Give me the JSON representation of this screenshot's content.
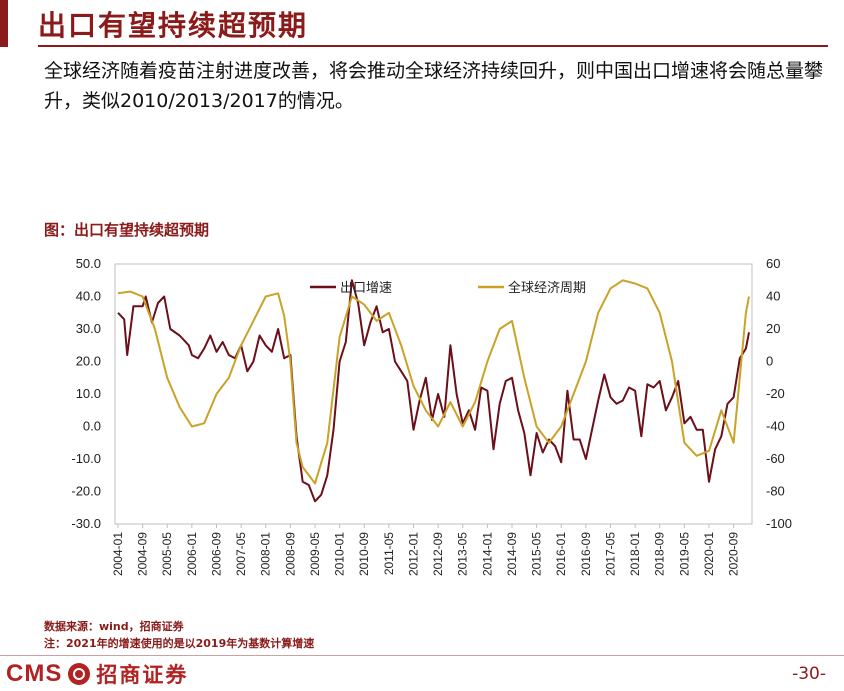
{
  "page": {
    "title": "出口有望持续超预期",
    "summary": "全球经济随着疫苗注射进度改善，将会推动全球经济持续回升，则中国出口增速将会随总量攀升，类似2010/2013/2017的情况。",
    "figure_caption": "图：出口有望持续超预期",
    "source": "数据来源：wind，招商证券",
    "note": "注：2021年的增速使用的是以2019年为基数计算增速",
    "logo_cms": "CMS",
    "logo_cn": "招商证券",
    "page_number": "-30-"
  },
  "colors": {
    "accent": "#8b1a1a",
    "export_series": "#6b0f1a",
    "global_cycle_series": "#c9a227"
  },
  "chart_data": {
    "type": "line",
    "title": "",
    "xlabel": "",
    "ylabel": "",
    "legend_position": "top-center",
    "grid": false,
    "x_ticks": [
      "2004-01",
      "2004-09",
      "2005-05",
      "2006-01",
      "2006-09",
      "2007-05",
      "2008-01",
      "2008-09",
      "2009-05",
      "2010-01",
      "2010-09",
      "2011-05",
      "2012-01",
      "2012-09",
      "2013-05",
      "2014-01",
      "2014-09",
      "2015-05",
      "2016-01",
      "2016-09",
      "2017-05",
      "2018-01",
      "2018-09",
      "2019-05",
      "2020-01",
      "2020-09"
    ],
    "y_left": {
      "ylim": [
        -30,
        50
      ],
      "ticks": [
        "50.0",
        "40.0",
        "30.0",
        "20.0",
        "10.0",
        "0.0",
        "-10.0",
        "-20.0",
        "-30.0"
      ]
    },
    "y_right": {
      "ylim": [
        -100,
        60
      ],
      "ticks": [
        "60",
        "40",
        "20",
        "0",
        "-20",
        "-40",
        "-60",
        "-80",
        "-100"
      ]
    },
    "series": [
      {
        "name": "出口增速",
        "axis": "left",
        "color": "#6b0f1a",
        "points": [
          [
            "2004-01",
            35
          ],
          [
            "2004-03",
            33
          ],
          [
            "2004-04",
            22
          ],
          [
            "2004-06",
            37
          ],
          [
            "2004-09",
            37
          ],
          [
            "2004-10",
            40
          ],
          [
            "2004-12",
            32
          ],
          [
            "2005-02",
            38
          ],
          [
            "2005-04",
            40
          ],
          [
            "2005-06",
            30
          ],
          [
            "2005-09",
            28
          ],
          [
            "2005-12",
            25
          ],
          [
            "2006-01",
            22
          ],
          [
            "2006-03",
            21
          ],
          [
            "2006-05",
            24
          ],
          [
            "2006-07",
            28
          ],
          [
            "2006-09",
            23
          ],
          [
            "2006-11",
            26
          ],
          [
            "2007-01",
            22
          ],
          [
            "2007-03",
            21
          ],
          [
            "2007-05",
            25
          ],
          [
            "2007-07",
            17
          ],
          [
            "2007-09",
            20
          ],
          [
            "2007-11",
            28
          ],
          [
            "2008-01",
            25
          ],
          [
            "2008-03",
            23
          ],
          [
            "2008-05",
            30
          ],
          [
            "2008-07",
            21
          ],
          [
            "2008-09",
            22
          ],
          [
            "2008-11",
            -3
          ],
          [
            "2009-01",
            -17
          ],
          [
            "2009-03",
            -18
          ],
          [
            "2009-05",
            -23
          ],
          [
            "2009-07",
            -21
          ],
          [
            "2009-09",
            -15
          ],
          [
            "2009-11",
            -1
          ],
          [
            "2010-01",
            20
          ],
          [
            "2010-03",
            26
          ],
          [
            "2010-05",
            45
          ],
          [
            "2010-07",
            38
          ],
          [
            "2010-09",
            25
          ],
          [
            "2010-11",
            32
          ],
          [
            "2011-01",
            37
          ],
          [
            "2011-03",
            29
          ],
          [
            "2011-05",
            30
          ],
          [
            "2011-07",
            20
          ],
          [
            "2011-09",
            17
          ],
          [
            "2011-11",
            14
          ],
          [
            "2012-01",
            -1
          ],
          [
            "2012-03",
            8
          ],
          [
            "2012-05",
            15
          ],
          [
            "2012-07",
            2
          ],
          [
            "2012-09",
            10
          ],
          [
            "2012-11",
            3
          ],
          [
            "2013-01",
            25
          ],
          [
            "2013-03",
            10
          ],
          [
            "2013-05",
            1
          ],
          [
            "2013-07",
            5
          ],
          [
            "2013-09",
            -1
          ],
          [
            "2013-11",
            12
          ],
          [
            "2014-01",
            11
          ],
          [
            "2014-03",
            -7
          ],
          [
            "2014-05",
            7
          ],
          [
            "2014-07",
            14
          ],
          [
            "2014-09",
            15
          ],
          [
            "2014-11",
            5
          ],
          [
            "2015-01",
            -2
          ],
          [
            "2015-03",
            -15
          ],
          [
            "2015-05",
            -2
          ],
          [
            "2015-07",
            -8
          ],
          [
            "2015-09",
            -4
          ],
          [
            "2015-11",
            -6
          ],
          [
            "2016-01",
            -11
          ],
          [
            "2016-03",
            11
          ],
          [
            "2016-05",
            -4
          ],
          [
            "2016-07",
            -4
          ],
          [
            "2016-09",
            -10
          ],
          [
            "2016-11",
            -1
          ],
          [
            "2017-01",
            8
          ],
          [
            "2017-03",
            16
          ],
          [
            "2017-05",
            9
          ],
          [
            "2017-07",
            7
          ],
          [
            "2017-09",
            8
          ],
          [
            "2017-11",
            12
          ],
          [
            "2018-01",
            11
          ],
          [
            "2018-03",
            -3
          ],
          [
            "2018-05",
            13
          ],
          [
            "2018-07",
            12
          ],
          [
            "2018-09",
            14
          ],
          [
            "2018-11",
            5
          ],
          [
            "2019-01",
            9
          ],
          [
            "2019-03",
            14
          ],
          [
            "2019-05",
            1
          ],
          [
            "2019-07",
            3
          ],
          [
            "2019-09",
            -1
          ],
          [
            "2019-11",
            -1
          ],
          [
            "2020-01",
            -17
          ],
          [
            "2020-03",
            -7
          ],
          [
            "2020-05",
            -3
          ],
          [
            "2020-07",
            7
          ],
          [
            "2020-09",
            9
          ],
          [
            "2020-11",
            21
          ],
          [
            "2021-01",
            24
          ],
          [
            "2021-02",
            29
          ]
        ]
      },
      {
        "name": "全球经济周期",
        "axis": "right",
        "color": "#c9a227",
        "points": [
          [
            "2004-01",
            42
          ],
          [
            "2004-05",
            43
          ],
          [
            "2004-09",
            40
          ],
          [
            "2005-01",
            20
          ],
          [
            "2005-05",
            -10
          ],
          [
            "2005-09",
            -28
          ],
          [
            "2006-01",
            -40
          ],
          [
            "2006-05",
            -38
          ],
          [
            "2006-09",
            -20
          ],
          [
            "2007-01",
            -10
          ],
          [
            "2007-05",
            10
          ],
          [
            "2007-09",
            25
          ],
          [
            "2008-01",
            40
          ],
          [
            "2008-05",
            42
          ],
          [
            "2008-07",
            28
          ],
          [
            "2008-09",
            0
          ],
          [
            "2008-11",
            -50
          ],
          [
            "2009-01",
            -65
          ],
          [
            "2009-05",
            -75
          ],
          [
            "2009-09",
            -50
          ],
          [
            "2010-01",
            15
          ],
          [
            "2010-05",
            40
          ],
          [
            "2010-09",
            35
          ],
          [
            "2011-01",
            25
          ],
          [
            "2011-05",
            30
          ],
          [
            "2011-09",
            10
          ],
          [
            "2012-01",
            -15
          ],
          [
            "2012-05",
            -30
          ],
          [
            "2012-09",
            -40
          ],
          [
            "2013-01",
            -25
          ],
          [
            "2013-05",
            -40
          ],
          [
            "2013-09",
            -25
          ],
          [
            "2014-01",
            0
          ],
          [
            "2014-05",
            20
          ],
          [
            "2014-09",
            25
          ],
          [
            "2015-01",
            -10
          ],
          [
            "2015-05",
            -40
          ],
          [
            "2015-09",
            -50
          ],
          [
            "2016-01",
            -40
          ],
          [
            "2016-05",
            -20
          ],
          [
            "2016-09",
            0
          ],
          [
            "2017-01",
            30
          ],
          [
            "2017-05",
            45
          ],
          [
            "2017-09",
            50
          ],
          [
            "2018-01",
            48
          ],
          [
            "2018-05",
            45
          ],
          [
            "2018-09",
            30
          ],
          [
            "2019-01",
            0
          ],
          [
            "2019-05",
            -50
          ],
          [
            "2019-09",
            -58
          ],
          [
            "2020-01",
            -55
          ],
          [
            "2020-05",
            -30
          ],
          [
            "2020-09",
            -50
          ],
          [
            "2021-01",
            30
          ],
          [
            "2021-02",
            40
          ]
        ]
      }
    ]
  }
}
